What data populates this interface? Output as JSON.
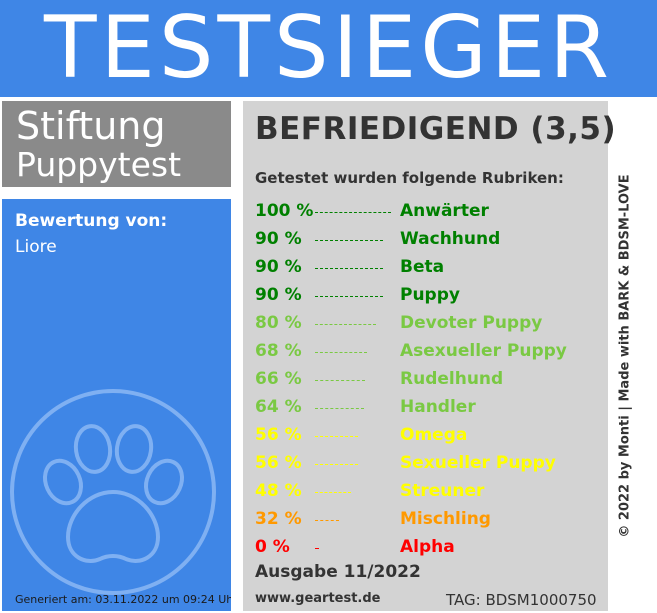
{
  "header": {
    "title": "TESTSIEGER"
  },
  "brand": {
    "line1": "Stiftung",
    "line2": "Puppytest"
  },
  "left_panel": {
    "rating_label": "Bewertung von:",
    "rating_name": "Liore",
    "logo_icon": "paw-icon",
    "generated": "Generiert am: 03.11.2022 um 09:24 Uhr"
  },
  "result": {
    "verdict": "BEFRIEDIGEND (3,5)",
    "subtitle": "Getestet wurden folgende Rubriken:",
    "categories": [
      {
        "percent": "100 %",
        "value": 100,
        "name": "Anwärter",
        "color": "#008000"
      },
      {
        "percent": "90 %",
        "value": 90,
        "name": "Wachhund",
        "color": "#008000"
      },
      {
        "percent": "90 %",
        "value": 90,
        "name": "Beta",
        "color": "#008000"
      },
      {
        "percent": "90 %",
        "value": 90,
        "name": "Puppy",
        "color": "#008000"
      },
      {
        "percent": "80 %",
        "value": 80,
        "name": "Devoter Puppy",
        "color": "#7ac943"
      },
      {
        "percent": "68 %",
        "value": 68,
        "name": "Asexueller Puppy",
        "color": "#7ac943"
      },
      {
        "percent": "66 %",
        "value": 66,
        "name": "Rudelhund",
        "color": "#7ac943"
      },
      {
        "percent": "64 %",
        "value": 64,
        "name": "Handler",
        "color": "#7ac943"
      },
      {
        "percent": "56 %",
        "value": 56,
        "name": "Omega",
        "color": "#ffff00"
      },
      {
        "percent": "56 %",
        "value": 56,
        "name": "Sexueller Puppy",
        "color": "#ffff00"
      },
      {
        "percent": "48 %",
        "value": 48,
        "name": "Streuner",
        "color": "#ffff00"
      },
      {
        "percent": "32 %",
        "value": 32,
        "name": "Mischling",
        "color": "#ff9900"
      },
      {
        "percent": "0 %",
        "value": 0,
        "name": "Alpha",
        "color": "#ff0000"
      }
    ],
    "issue": "Ausgabe 11/2022",
    "website": "www.geartest.de",
    "tag": "TAG: BDSM1000750"
  },
  "credit": "© 2022 by Monti | Made with BARK & BDSM-LOVE",
  "colors": {
    "blue": "#3f86e6",
    "gray": "#8a8a8a",
    "panel": "#d3d3d3"
  }
}
